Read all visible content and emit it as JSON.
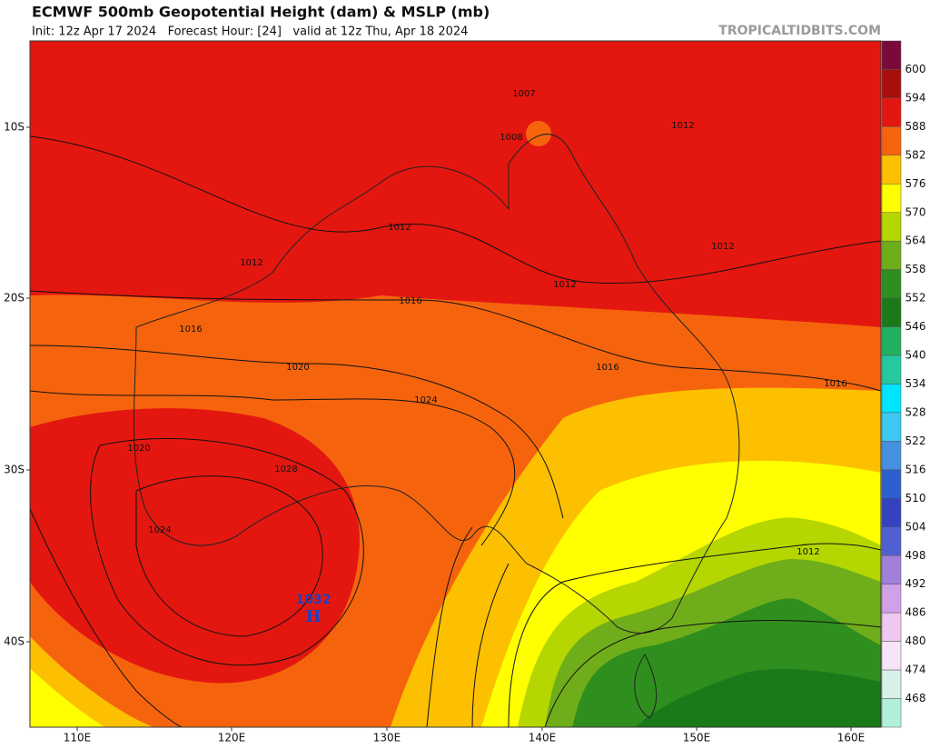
{
  "header": {
    "title": "ECMWF 500mb Geopotential Height (dam) & MSLP (mb)",
    "subtitle": "Init: 12z Apr 17 2024   Forecast Hour: [24]   valid at 12z Thu, Apr 18 2024",
    "watermark": "TROPICALTIDBITS.COM"
  },
  "map": {
    "lat_labels": [
      "10S",
      "20S",
      "30S",
      "40S"
    ],
    "lon_labels": [
      "110E",
      "120E",
      "130E",
      "140E",
      "150E",
      "160E"
    ],
    "contour_labels": [
      1012,
      1012,
      1012,
      1012,
      1012,
      1012,
      1016,
      1016,
      1016,
      1016,
      1020,
      1020,
      1024,
      1024,
      1028,
      1008,
      1007
    ],
    "high": {
      "pressure": "1032",
      "symbol": "H"
    }
  },
  "colorbar": {
    "labels": [
      600,
      594,
      588,
      582,
      576,
      570,
      564,
      558,
      552,
      546,
      540,
      534,
      528,
      522,
      516,
      510,
      504,
      498,
      492,
      486,
      480,
      474,
      468
    ],
    "colors": [
      "#7a0a3c",
      "#a80f0f",
      "#e3170f",
      "#f5640d",
      "#fcc000",
      "#ffff00",
      "#b5d600",
      "#6fae1a",
      "#2f8f1e",
      "#1a7a1a",
      "#20b060",
      "#25c8a0",
      "#00e5ff",
      "#3cc8f0",
      "#4690e0",
      "#2e5fd0",
      "#3442c0",
      "#5060d0",
      "#a080d8",
      "#d0a0e8",
      "#eec8f0",
      "#f8e4f8",
      "#d8f0e8",
      "#b0f0d8"
    ]
  }
}
